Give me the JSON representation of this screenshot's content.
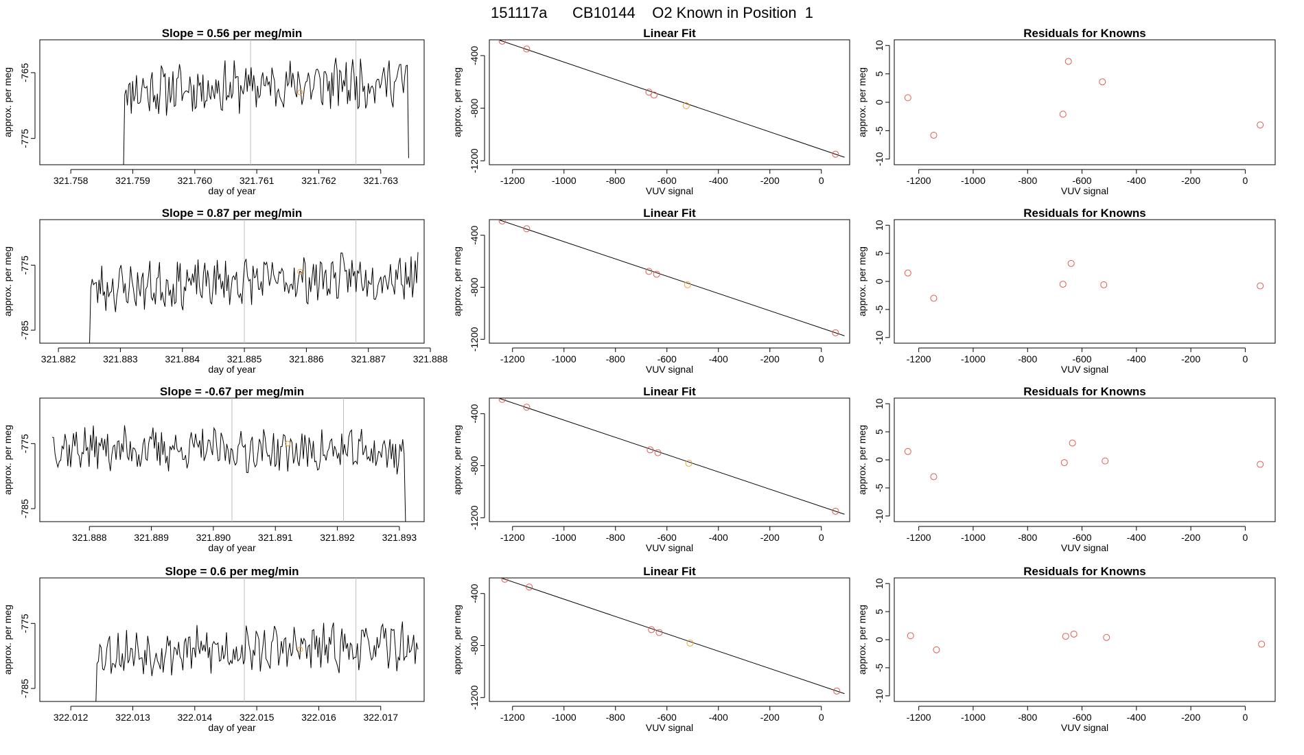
{
  "figure": {
    "title": "151117a      CB10144    O2 Known in Position  1",
    "colors": {
      "line": "#000000",
      "point": "#e05a4f",
      "highlight": "#f2a33a",
      "guide": "#bdbdbd"
    }
  },
  "chart_data": [
    {
      "type": "line",
      "panel": "time-series",
      "row": 1,
      "title": "Slope =  0.56  per meg/min",
      "xlabel": "day of year",
      "ylabel": "approx. per meg",
      "xlim": [
        321.7575,
        321.7637
      ],
      "ylim": [
        -779,
        -760
      ],
      "xticks": [
        "321.758",
        "321.759",
        "321.760",
        "321.761",
        "321.762",
        "321.763"
      ],
      "xtick_values": [
        321.758,
        321.759,
        321.76,
        321.761,
        321.762,
        321.763
      ],
      "yticks": [
        "-765",
        "-775"
      ],
      "ytick_values": [
        -765,
        -775
      ],
      "guides": [
        321.7609,
        321.7626
      ],
      "highlight": {
        "x": 321.7617,
        "y": -768
      },
      "series": {
        "start": 321.75885,
        "end": 321.76345,
        "n": 220,
        "mean": -767,
        "amp": 3.2,
        "trend": 1.5,
        "seed": 11,
        "drop_start": -780,
        "drop_end": -778
      }
    },
    {
      "type": "scatter",
      "panel": "linear-fit",
      "row": 1,
      "title": "Linear Fit",
      "xlabel": "VUV signal",
      "ylabel": "approx. per meg",
      "xlim": [
        -1290,
        110
      ],
      "ylim": [
        -1230,
        -280
      ],
      "xticks": [
        "-1200",
        "-1000",
        "-800",
        "-600",
        "-400",
        "-200",
        "0"
      ],
      "xtick_values": [
        -1200,
        -1000,
        -800,
        -600,
        -400,
        -200,
        0
      ],
      "yticks": [
        "-400",
        "-800",
        "-1200"
      ],
      "ytick_values": [
        -400,
        -800,
        -1200
      ],
      "fit": {
        "slope": 0.6,
        "intercept": -1210
      },
      "points": [
        {
          "x": -1240,
          "y": -290,
          "hl": false
        },
        {
          "x": -1145,
          "y": -350,
          "hl": false
        },
        {
          "x": -670,
          "y": -678,
          "hl": false
        },
        {
          "x": -650,
          "y": -700,
          "hl": false
        },
        {
          "x": -525,
          "y": -781,
          "hl": true
        },
        {
          "x": 55,
          "y": -1150,
          "hl": false
        }
      ]
    },
    {
      "type": "scatter",
      "panel": "residuals",
      "row": 1,
      "title": "Residuals for Knowns",
      "xlabel": "VUV signal",
      "ylabel": "approx. per meg",
      "xlim": [
        -1290,
        110
      ],
      "ylim": [
        -11,
        11
      ],
      "xticks": [
        "-1200",
        "-1000",
        "-800",
        "-600",
        "-400",
        "-200",
        "0"
      ],
      "xtick_values": [
        -1200,
        -1000,
        -800,
        -600,
        -400,
        -200,
        0
      ],
      "yticks": [
        "-10",
        "-5",
        "0",
        "5",
        "10"
      ],
      "ytick_values": [
        -10,
        -5,
        0,
        5,
        10
      ],
      "points": [
        {
          "x": -1240,
          "y": 0.8
        },
        {
          "x": -1145,
          "y": -5.8
        },
        {
          "x": -670,
          "y": -2.1
        },
        {
          "x": -650,
          "y": 7.2
        },
        {
          "x": -525,
          "y": 3.6
        },
        {
          "x": 55,
          "y": -4.0
        }
      ]
    },
    {
      "type": "line",
      "panel": "time-series",
      "row": 2,
      "title": "Slope =  0.87  per meg/min",
      "xlabel": "day of year",
      "ylabel": "approx. per meg",
      "xlim": [
        321.8817,
        321.8879
      ],
      "ylim": [
        -787,
        -768
      ],
      "xticks": [
        "321.882",
        "321.883",
        "321.884",
        "321.885",
        "321.886",
        "321.887",
        "321.888"
      ],
      "xtick_values": [
        321.882,
        321.883,
        321.884,
        321.885,
        321.886,
        321.887,
        321.888
      ],
      "yticks": [
        "-775",
        "-785"
      ],
      "ytick_values": [
        -775,
        -785
      ],
      "guides": [
        321.885,
        321.8868
      ],
      "highlight": {
        "x": 321.8859,
        "y": -776
      },
      "series": {
        "start": 321.8825,
        "end": 321.8878,
        "n": 240,
        "mean": -777.5,
        "amp": 3.0,
        "trend": 2.2,
        "seed": 23,
        "drop_start": -788,
        "drop_end": -773
      }
    },
    {
      "type": "scatter",
      "panel": "linear-fit",
      "row": 2,
      "title": "Linear Fit",
      "xlabel": "VUV signal",
      "ylabel": "approx. per meg",
      "xlim": [
        -1290,
        110
      ],
      "ylim": [
        -1230,
        -280
      ],
      "xticks": [
        "-1200",
        "-1000",
        "-800",
        "-600",
        "-400",
        "-200",
        "0"
      ],
      "xtick_values": [
        -1200,
        -1000,
        -800,
        -600,
        -400,
        -200,
        0
      ],
      "yticks": [
        "-400",
        "-800",
        "-1200"
      ],
      "ytick_values": [
        -400,
        -800,
        -1200
      ],
      "fit": {
        "slope": 0.6,
        "intercept": -1210
      },
      "points": [
        {
          "x": -1240,
          "y": -290,
          "hl": false
        },
        {
          "x": -1145,
          "y": -350,
          "hl": false
        },
        {
          "x": -670,
          "y": -678,
          "hl": false
        },
        {
          "x": -640,
          "y": -700,
          "hl": false
        },
        {
          "x": -520,
          "y": -781,
          "hl": true
        },
        {
          "x": 55,
          "y": -1150,
          "hl": false
        }
      ]
    },
    {
      "type": "scatter",
      "panel": "residuals",
      "row": 2,
      "title": "Residuals for Knowns",
      "xlabel": "VUV signal",
      "ylabel": "approx. per meg",
      "xlim": [
        -1290,
        110
      ],
      "ylim": [
        -11,
        11
      ],
      "xticks": [
        "-1200",
        "-1000",
        "-800",
        "-600",
        "-400",
        "-200",
        "0"
      ],
      "xtick_values": [
        -1200,
        -1000,
        -800,
        -600,
        -400,
        -200,
        0
      ],
      "yticks": [
        "-10",
        "-5",
        "0",
        "5",
        "10"
      ],
      "ytick_values": [
        -10,
        -5,
        0,
        5,
        10
      ],
      "points": [
        {
          "x": -1240,
          "y": 1.5
        },
        {
          "x": -1145,
          "y": -3.0
        },
        {
          "x": -670,
          "y": -0.5
        },
        {
          "x": -640,
          "y": 3.2
        },
        {
          "x": -520,
          "y": -0.6
        },
        {
          "x": 55,
          "y": -0.8
        }
      ]
    },
    {
      "type": "line",
      "panel": "time-series",
      "row": 3,
      "title": "Slope =  -0.67  per meg/min",
      "xlabel": "day of year",
      "ylabel": "approx. per meg",
      "xlim": [
        321.8872,
        321.8934
      ],
      "ylim": [
        -787,
        -768
      ],
      "xticks": [
        "321.888",
        "321.889",
        "321.890",
        "321.891",
        "321.892",
        "321.893"
      ],
      "xtick_values": [
        321.888,
        321.889,
        321.89,
        321.891,
        321.892,
        321.893
      ],
      "yticks": [
        "-775",
        "-785"
      ],
      "ytick_values": [
        -775,
        -785
      ],
      "guides": [
        321.8903,
        321.8921
      ],
      "highlight": {
        "x": 321.8912,
        "y": -775
      },
      "series": {
        "start": 321.8874,
        "end": 321.8931,
        "n": 250,
        "mean": -776,
        "amp": 2.8,
        "trend": -0.8,
        "seed": 37,
        "drop_start": -774,
        "drop_end": -787
      }
    },
    {
      "type": "scatter",
      "panel": "linear-fit",
      "row": 3,
      "title": "Linear Fit",
      "xlabel": "VUV signal",
      "ylabel": "approx. per meg",
      "xlim": [
        -1290,
        110
      ],
      "ylim": [
        -1230,
        -280
      ],
      "xticks": [
        "-1200",
        "-1000",
        "-800",
        "-600",
        "-400",
        "-200",
        "0"
      ],
      "xtick_values": [
        -1200,
        -1000,
        -800,
        -600,
        -400,
        -200,
        0
      ],
      "yticks": [
        "-400",
        "-800",
        "-1200"
      ],
      "ytick_values": [
        -400,
        -800,
        -1200
      ],
      "fit": {
        "slope": 0.6,
        "intercept": -1210
      },
      "points": [
        {
          "x": -1240,
          "y": -290,
          "hl": false
        },
        {
          "x": -1145,
          "y": -350,
          "hl": false
        },
        {
          "x": -665,
          "y": -678,
          "hl": false
        },
        {
          "x": -635,
          "y": -700,
          "hl": false
        },
        {
          "x": -515,
          "y": -781,
          "hl": true
        },
        {
          "x": 55,
          "y": -1150,
          "hl": false
        }
      ]
    },
    {
      "type": "scatter",
      "panel": "residuals",
      "row": 3,
      "title": "Residuals for Knowns",
      "xlabel": "VUV signal",
      "ylabel": "approx. per meg",
      "xlim": [
        -1290,
        110
      ],
      "ylim": [
        -11,
        11
      ],
      "xticks": [
        "-1200",
        "-1000",
        "-800",
        "-600",
        "-400",
        "-200",
        "0"
      ],
      "xtick_values": [
        -1200,
        -1000,
        -800,
        -600,
        -400,
        -200,
        0
      ],
      "yticks": [
        "-10",
        "-5",
        "0",
        "5",
        "10"
      ],
      "ytick_values": [
        -10,
        -5,
        0,
        5,
        10
      ],
      "points": [
        {
          "x": -1240,
          "y": 1.5
        },
        {
          "x": -1145,
          "y": -3.0
        },
        {
          "x": -665,
          "y": -0.5
        },
        {
          "x": -635,
          "y": 3.0
        },
        {
          "x": -515,
          "y": -0.2
        },
        {
          "x": 55,
          "y": -0.8
        }
      ]
    },
    {
      "type": "line",
      "panel": "time-series",
      "row": 4,
      "title": "Slope =  0.6  per meg/min",
      "xlabel": "day of year",
      "ylabel": "approx. per meg",
      "xlim": [
        322.0115,
        322.0177
      ],
      "ylim": [
        -787,
        -768
      ],
      "xticks": [
        "322.012",
        "322.013",
        "322.014",
        "322.015",
        "322.016",
        "322.017"
      ],
      "xtick_values": [
        322.012,
        322.013,
        322.014,
        322.015,
        322.016,
        322.017
      ],
      "yticks": [
        "-775",
        "-785"
      ],
      "ytick_values": [
        -775,
        -785
      ],
      "guides": [
        322.0148,
        322.0166
      ],
      "highlight": {
        "x": 322.0157,
        "y": -779
      },
      "series": {
        "start": 322.0124,
        "end": 322.0176,
        "n": 230,
        "mean": -779,
        "amp": 3.0,
        "trend": 1.0,
        "seed": 53,
        "drop_start": -789,
        "drop_end": -779
      }
    },
    {
      "type": "scatter",
      "panel": "linear-fit",
      "row": 4,
      "title": "Linear Fit",
      "xlabel": "VUV signal",
      "ylabel": "approx. per meg",
      "xlim": [
        -1290,
        110
      ],
      "ylim": [
        -1230,
        -280
      ],
      "xticks": [
        "-1200",
        "-1000",
        "-800",
        "-600",
        "-400",
        "-200",
        "0"
      ],
      "xtick_values": [
        -1200,
        -1000,
        -800,
        -600,
        -400,
        -200,
        0
      ],
      "yticks": [
        "-400",
        "-800",
        "-1200"
      ],
      "ytick_values": [
        -400,
        -800,
        -1200
      ],
      "fit": {
        "slope": 0.6,
        "intercept": -1210
      },
      "points": [
        {
          "x": -1230,
          "y": -290,
          "hl": false
        },
        {
          "x": -1135,
          "y": -350,
          "hl": false
        },
        {
          "x": -660,
          "y": -678,
          "hl": false
        },
        {
          "x": -630,
          "y": -700,
          "hl": false
        },
        {
          "x": -510,
          "y": -781,
          "hl": true
        },
        {
          "x": 60,
          "y": -1150,
          "hl": false
        }
      ]
    },
    {
      "type": "scatter",
      "panel": "residuals",
      "row": 4,
      "title": "Residuals for Knowns",
      "xlabel": "VUV signal",
      "ylabel": "approx. per meg",
      "xlim": [
        -1290,
        110
      ],
      "ylim": [
        -11,
        11
      ],
      "xticks": [
        "-1200",
        "-1000",
        "-800",
        "-600",
        "-400",
        "-200",
        "0"
      ],
      "xtick_values": [
        -1200,
        -1000,
        -800,
        -600,
        -400,
        -200,
        0
      ],
      "yticks": [
        "-10",
        "-5",
        "0",
        "5",
        "10"
      ],
      "ytick_values": [
        -10,
        -5,
        0,
        5,
        10
      ],
      "points": [
        {
          "x": -1230,
          "y": 0.7
        },
        {
          "x": -1135,
          "y": -1.8
        },
        {
          "x": -660,
          "y": 0.6
        },
        {
          "x": -630,
          "y": 1.0
        },
        {
          "x": -510,
          "y": 0.4
        },
        {
          "x": 60,
          "y": -0.8
        }
      ]
    }
  ]
}
